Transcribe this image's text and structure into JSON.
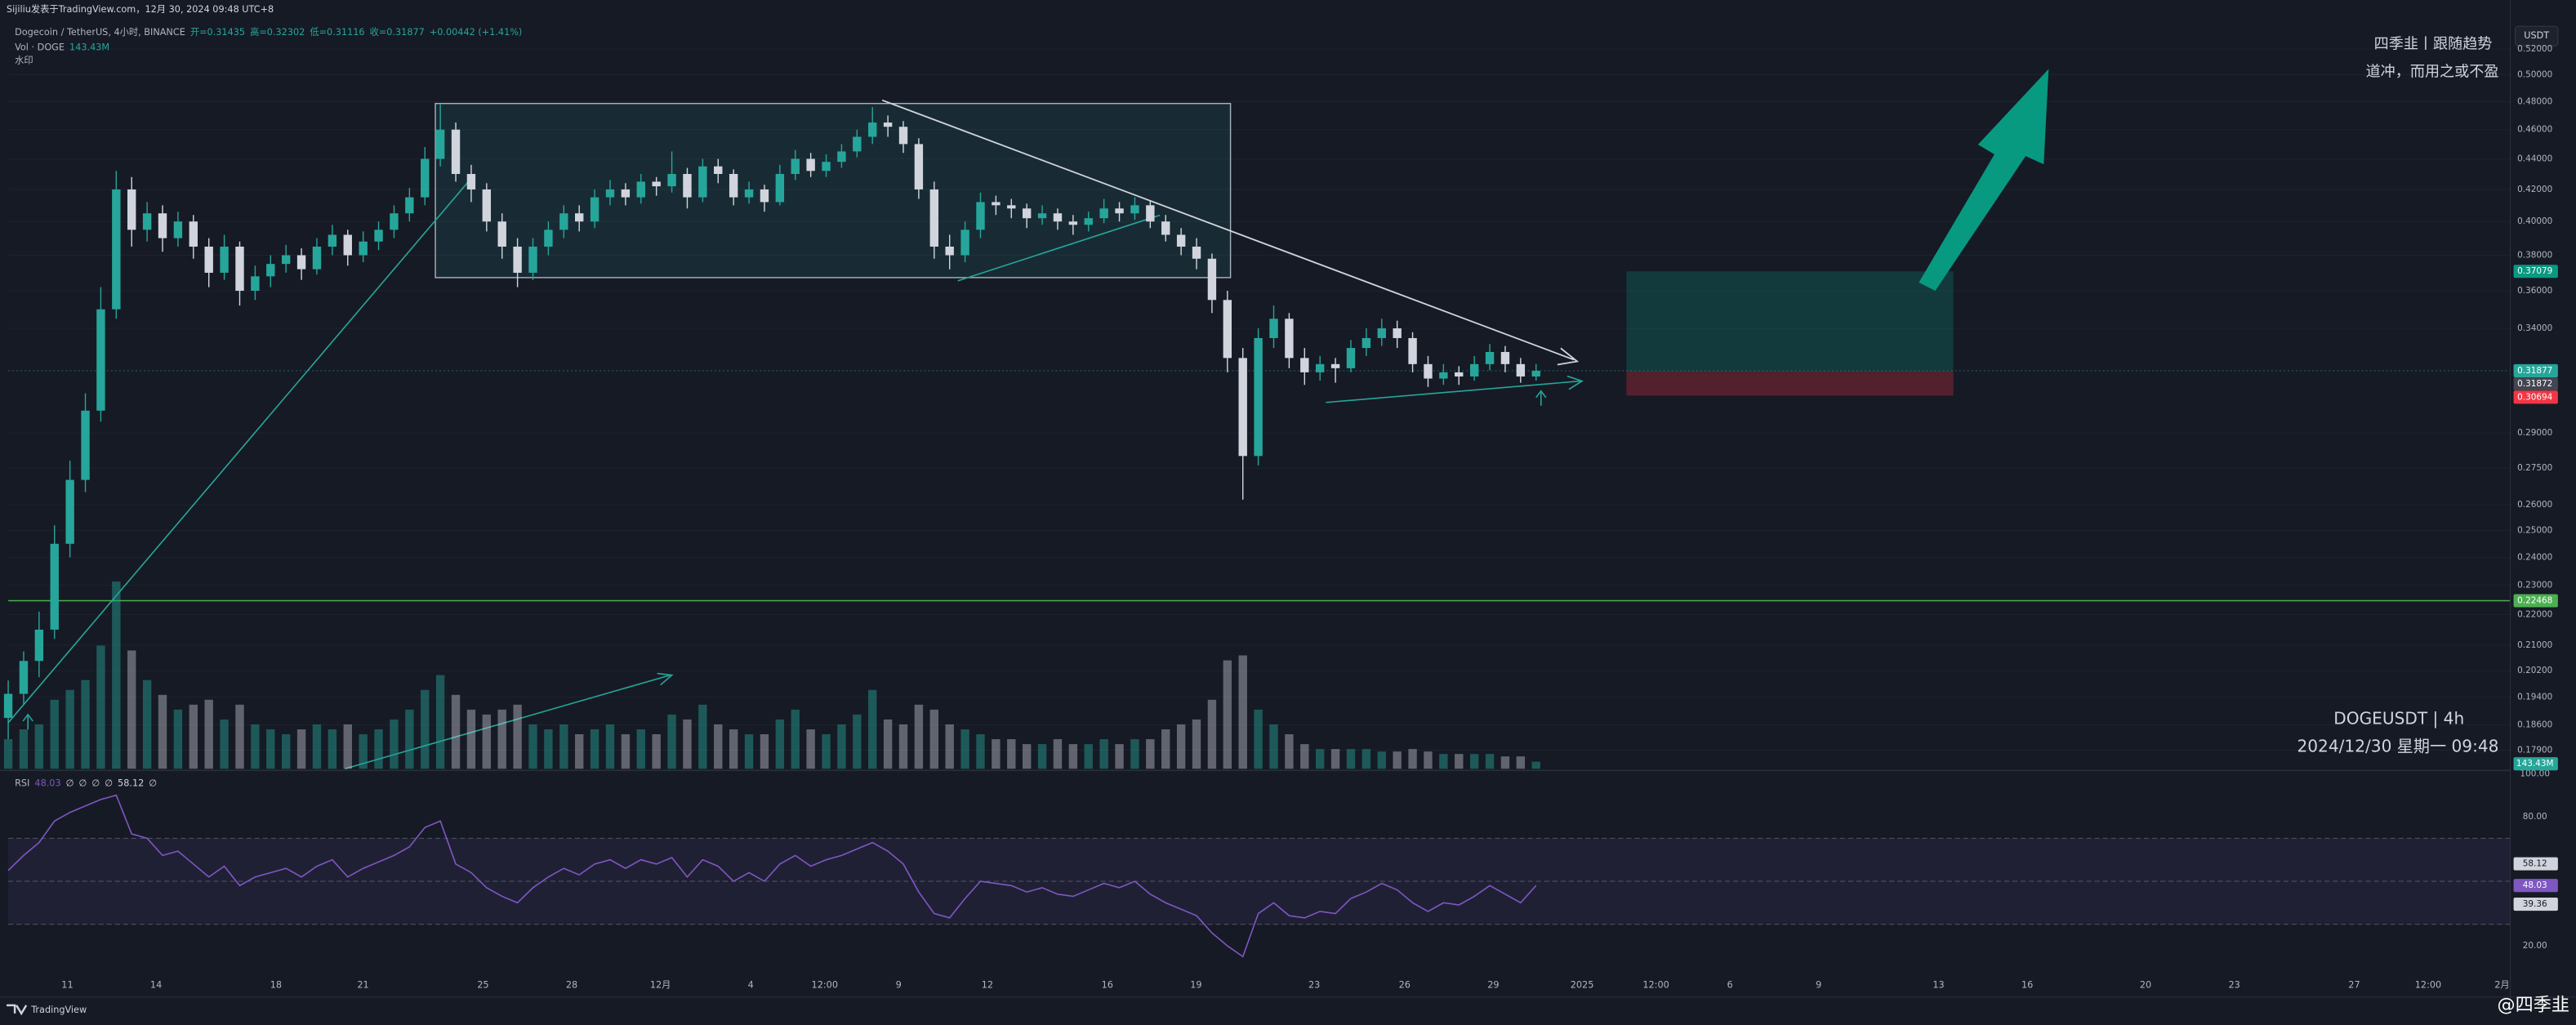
{
  "header": {
    "published": "Sijiliu发表于TradingView.com，12月 30, 2024 09:48 UTC+8",
    "symbol": "Dogecoin / TetherUS, 4小时, BINANCE",
    "ohlc_legend": [
      "开=0.31435",
      "高=0.32302",
      "低=0.31116",
      "收=0.31877",
      "+0.00442 (+1.41%)"
    ],
    "volume_legend": [
      "Vol · DOGE",
      "143.43M"
    ],
    "watermark_legend": "水印"
  },
  "currency": "USDT",
  "watermarks": {
    "top": [
      "四季韭丨跟随趋势",
      "道冲，而用之或不盈"
    ],
    "bottom": [
      "DOGEUSDT | 4h",
      "2024/12/30 星期一 09:48"
    ],
    "handle": "@四季韭"
  },
  "brand": "TradingView",
  "chart_data": {
    "type": "candlestick",
    "log": true,
    "grid": true,
    "up_color": "#26a69a",
    "down_color": "#d1d4dc",
    "ylim": [
      0.174,
      0.541
    ],
    "yticks": [
      {
        "value": 0.52,
        "label": "0.52000"
      },
      {
        "value": 0.5,
        "label": "0.50000"
      },
      {
        "value": 0.48,
        "label": "0.48000"
      },
      {
        "value": 0.46,
        "label": "0.46000"
      },
      {
        "value": 0.44,
        "label": "0.44000"
      },
      {
        "value": 0.42,
        "label": "0.42000"
      },
      {
        "value": 0.4,
        "label": "0.40000"
      },
      {
        "value": 0.38,
        "label": "0.38000"
      },
      {
        "value": 0.36,
        "label": "0.36000"
      },
      {
        "value": 0.34,
        "label": "0.34000"
      },
      {
        "value": 0.29,
        "label": "0.29000"
      },
      {
        "value": 0.275,
        "label": "0.27500"
      },
      {
        "value": 0.26,
        "label": "0.26000"
      },
      {
        "value": 0.25,
        "label": "0.25000"
      },
      {
        "value": 0.24,
        "label": "0.24000"
      },
      {
        "value": 0.23,
        "label": "0.23000"
      },
      {
        "value": 0.22,
        "label": "0.22000"
      },
      {
        "value": 0.21,
        "label": "0.21000"
      },
      {
        "value": 0.202,
        "label": "0.20200"
      },
      {
        "value": 0.194,
        "label": "0.19400"
      },
      {
        "value": 0.186,
        "label": "0.18600"
      },
      {
        "value": 0.179,
        "label": "0.17900"
      }
    ],
    "xtick_labels": [
      "11",
      "14",
      "18",
      "21",
      "25",
      "28",
      "12月",
      "4",
      "12:00",
      "9",
      "12",
      "16",
      "19",
      "23",
      "26",
      "29",
      "2025",
      "12:00",
      "6",
      "9",
      "13",
      "16",
      "20",
      "23",
      "27",
      "12:00",
      "2月"
    ],
    "ohlc": [
      [
        0.188,
        0.199,
        0.182,
        0.195
      ],
      [
        0.195,
        0.208,
        0.192,
        0.205
      ],
      [
        0.205,
        0.221,
        0.2,
        0.215
      ],
      [
        0.215,
        0.252,
        0.212,
        0.245
      ],
      [
        0.245,
        0.278,
        0.24,
        0.27
      ],
      [
        0.27,
        0.308,
        0.265,
        0.3
      ],
      [
        0.3,
        0.362,
        0.295,
        0.35
      ],
      [
        0.35,
        0.432,
        0.345,
        0.42
      ],
      [
        0.42,
        0.428,
        0.385,
        0.395
      ],
      [
        0.395,
        0.412,
        0.388,
        0.405
      ],
      [
        0.405,
        0.41,
        0.382,
        0.39
      ],
      [
        0.39,
        0.406,
        0.385,
        0.4
      ],
      [
        0.4,
        0.404,
        0.378,
        0.385
      ],
      [
        0.385,
        0.39,
        0.362,
        0.37
      ],
      [
        0.37,
        0.392,
        0.366,
        0.385
      ],
      [
        0.385,
        0.388,
        0.352,
        0.36
      ],
      [
        0.36,
        0.374,
        0.355,
        0.368
      ],
      [
        0.368,
        0.38,
        0.362,
        0.375
      ],
      [
        0.375,
        0.386,
        0.37,
        0.38
      ],
      [
        0.38,
        0.384,
        0.366,
        0.372
      ],
      [
        0.372,
        0.39,
        0.369,
        0.385
      ],
      [
        0.385,
        0.398,
        0.38,
        0.392
      ],
      [
        0.392,
        0.395,
        0.374,
        0.38
      ],
      [
        0.38,
        0.394,
        0.376,
        0.388
      ],
      [
        0.388,
        0.4,
        0.383,
        0.395
      ],
      [
        0.395,
        0.41,
        0.39,
        0.405
      ],
      [
        0.405,
        0.421,
        0.4,
        0.415
      ],
      [
        0.415,
        0.448,
        0.41,
        0.44
      ],
      [
        0.44,
        0.478,
        0.435,
        0.46
      ],
      [
        0.46,
        0.465,
        0.425,
        0.43
      ],
      [
        0.43,
        0.436,
        0.412,
        0.42
      ],
      [
        0.42,
        0.424,
        0.394,
        0.4
      ],
      [
        0.4,
        0.405,
        0.378,
        0.385
      ],
      [
        0.385,
        0.39,
        0.362,
        0.37
      ],
      [
        0.37,
        0.39,
        0.366,
        0.385
      ],
      [
        0.385,
        0.4,
        0.38,
        0.395
      ],
      [
        0.395,
        0.41,
        0.39,
        0.405
      ],
      [
        0.405,
        0.41,
        0.394,
        0.4
      ],
      [
        0.4,
        0.42,
        0.396,
        0.415
      ],
      [
        0.415,
        0.426,
        0.41,
        0.42
      ],
      [
        0.42,
        0.424,
        0.41,
        0.415
      ],
      [
        0.415,
        0.43,
        0.411,
        0.425
      ],
      [
        0.425,
        0.428,
        0.416,
        0.422
      ],
      [
        0.422,
        0.445,
        0.418,
        0.43
      ],
      [
        0.43,
        0.434,
        0.408,
        0.415
      ],
      [
        0.415,
        0.44,
        0.412,
        0.435
      ],
      [
        0.435,
        0.44,
        0.424,
        0.43
      ],
      [
        0.43,
        0.433,
        0.41,
        0.415
      ],
      [
        0.415,
        0.425,
        0.411,
        0.42
      ],
      [
        0.42,
        0.423,
        0.406,
        0.412
      ],
      [
        0.412,
        0.436,
        0.41,
        0.43
      ],
      [
        0.43,
        0.446,
        0.426,
        0.44
      ],
      [
        0.44,
        0.444,
        0.428,
        0.432
      ],
      [
        0.432,
        0.443,
        0.428,
        0.438
      ],
      [
        0.438,
        0.45,
        0.434,
        0.445
      ],
      [
        0.445,
        0.46,
        0.441,
        0.455
      ],
      [
        0.455,
        0.476,
        0.45,
        0.465
      ],
      [
        0.465,
        0.47,
        0.455,
        0.462
      ],
      [
        0.462,
        0.466,
        0.444,
        0.45
      ],
      [
        0.45,
        0.454,
        0.414,
        0.42
      ],
      [
        0.42,
        0.425,
        0.378,
        0.385
      ],
      [
        0.385,
        0.392,
        0.372,
        0.38
      ],
      [
        0.38,
        0.4,
        0.376,
        0.395
      ],
      [
        0.395,
        0.418,
        0.39,
        0.412
      ],
      [
        0.412,
        0.416,
        0.404,
        0.41
      ],
      [
        0.41,
        0.414,
        0.402,
        0.408
      ],
      [
        0.408,
        0.411,
        0.396,
        0.402
      ],
      [
        0.402,
        0.41,
        0.398,
        0.405
      ],
      [
        0.405,
        0.408,
        0.395,
        0.4
      ],
      [
        0.4,
        0.404,
        0.392,
        0.398
      ],
      [
        0.398,
        0.406,
        0.394,
        0.402
      ],
      [
        0.402,
        0.414,
        0.399,
        0.408
      ],
      [
        0.408,
        0.412,
        0.4,
        0.405
      ],
      [
        0.405,
        0.415,
        0.401,
        0.41
      ],
      [
        0.41,
        0.413,
        0.396,
        0.4
      ],
      [
        0.4,
        0.404,
        0.388,
        0.392
      ],
      [
        0.392,
        0.396,
        0.38,
        0.385
      ],
      [
        0.385,
        0.39,
        0.372,
        0.378
      ],
      [
        0.378,
        0.381,
        0.348,
        0.355
      ],
      [
        0.355,
        0.36,
        0.318,
        0.325
      ],
      [
        0.325,
        0.33,
        0.262,
        0.28
      ],
      [
        0.28,
        0.34,
        0.276,
        0.335
      ],
      [
        0.335,
        0.352,
        0.33,
        0.345
      ],
      [
        0.345,
        0.348,
        0.32,
        0.325
      ],
      [
        0.325,
        0.33,
        0.312,
        0.318
      ],
      [
        0.318,
        0.326,
        0.314,
        0.322
      ],
      [
        0.322,
        0.325,
        0.313,
        0.32
      ],
      [
        0.32,
        0.334,
        0.318,
        0.33
      ],
      [
        0.33,
        0.34,
        0.326,
        0.335
      ],
      [
        0.335,
        0.345,
        0.331,
        0.34
      ],
      [
        0.34,
        0.344,
        0.33,
        0.335
      ],
      [
        0.335,
        0.338,
        0.318,
        0.322
      ],
      [
        0.322,
        0.326,
        0.311,
        0.315
      ],
      [
        0.315,
        0.322,
        0.312,
        0.318
      ],
      [
        0.318,
        0.321,
        0.312,
        0.316
      ],
      [
        0.316,
        0.326,
        0.314,
        0.322
      ],
      [
        0.322,
        0.332,
        0.319,
        0.328
      ],
      [
        0.328,
        0.331,
        0.318,
        0.322
      ],
      [
        0.322,
        0.325,
        0.313,
        0.316
      ],
      [
        0.316,
        0.322,
        0.314,
        0.31877
      ]
    ],
    "volume": {
      "ylim": [
        0,
        4000
      ],
      "last_label": "143.43M",
      "values": [
        600,
        800,
        900,
        1400,
        1600,
        1800,
        2500,
        3800,
        2400,
        1800,
        1500,
        1200,
        1300,
        1400,
        1000,
        1300,
        900,
        800,
        700,
        800,
        900,
        800,
        900,
        700,
        800,
        1000,
        1200,
        1600,
        1900,
        1500,
        1200,
        1100,
        1200,
        1300,
        900,
        800,
        900,
        700,
        800,
        900,
        700,
        800,
        700,
        1100,
        1000,
        1300,
        900,
        800,
        700,
        700,
        1000,
        1200,
        800,
        700,
        900,
        1100,
        1600,
        1000,
        900,
        1300,
        1200,
        900,
        800,
        700,
        600,
        600,
        500,
        500,
        600,
        500,
        500,
        600,
        500,
        600,
        600,
        800,
        900,
        1000,
        1400,
        2200,
        2300,
        1200,
        900,
        700,
        500,
        400,
        400,
        400,
        400,
        350,
        350,
        400,
        350,
        300,
        300,
        300,
        300,
        250,
        250,
        143.43
      ]
    },
    "position": {
      "target": 0.37079,
      "entry": 0.31872,
      "stop": 0.30694
    },
    "hline": 0.22468,
    "rsi": {
      "name": "RSI",
      "color": "#7e57c2",
      "ylim": [
        0,
        100
      ],
      "yticks": [
        {
          "value": 100,
          "label": "100.00"
        },
        {
          "value": 80,
          "label": "80.00"
        },
        {
          "value": 20,
          "label": "20.00"
        }
      ],
      "bands": [
        70,
        50,
        30
      ],
      "upper": 58.12,
      "lower": 39.36,
      "legend": [
        "48.03",
        "∅",
        "∅",
        "∅",
        "∅",
        "58.12",
        "∅"
      ],
      "values": [
        55,
        62,
        68,
        78,
        82,
        85,
        88,
        90,
        72,
        70,
        62,
        64,
        58,
        52,
        57,
        48,
        52,
        54,
        56,
        52,
        57,
        60,
        52,
        56,
        59,
        62,
        66,
        75,
        78,
        58,
        54,
        47,
        43,
        40,
        47,
        52,
        56,
        53,
        58,
        60,
        56,
        60,
        58,
        61,
        52,
        60,
        57,
        50,
        54,
        50,
        58,
        62,
        57,
        60,
        62,
        65,
        68,
        64,
        58,
        45,
        35,
        33,
        42,
        50,
        49,
        48,
        45,
        47,
        44,
        43,
        46,
        49,
        47,
        50,
        44,
        40,
        37,
        34,
        26,
        20,
        15,
        35,
        40,
        34,
        33,
        36,
        35,
        42,
        45,
        49,
        46,
        40,
        36,
        40,
        39,
        43,
        48,
        44,
        40,
        48.03
      ]
    }
  }
}
